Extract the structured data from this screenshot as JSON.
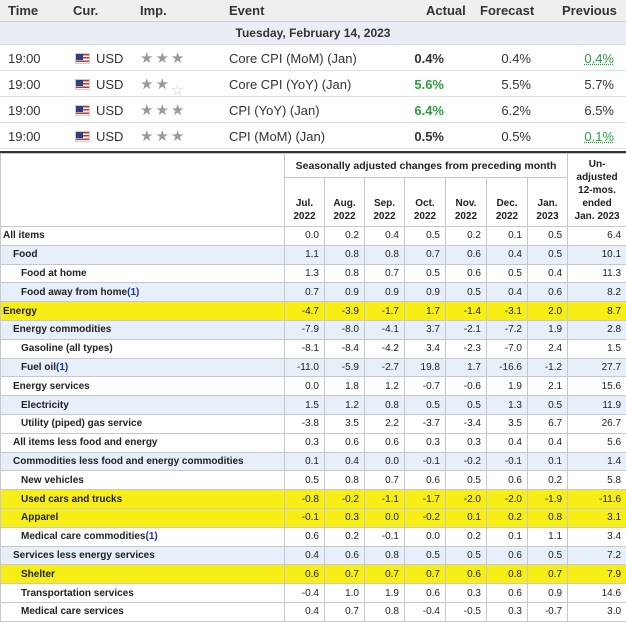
{
  "calendar": {
    "columns": {
      "time": "Time",
      "currency": "Cur.",
      "importance": "Imp.",
      "event": "Event",
      "actual": "Actual",
      "forecast": "Forecast",
      "previous": "Previous"
    },
    "date": "Tuesday, February 14, 2023",
    "events": [
      {
        "time": "19:00",
        "currency": "USD",
        "importance": 3,
        "event": "Core CPI (MoM) (Jan)",
        "actual": "0.4%",
        "forecast": "0.4%",
        "previous": "0.4%"
      },
      {
        "time": "19:00",
        "currency": "USD",
        "importance": 2,
        "event": "Core CPI (YoY) (Jan)",
        "actual": "5.6%",
        "forecast": "5.5%",
        "previous": "5.7%"
      },
      {
        "time": "19:00",
        "currency": "USD",
        "importance": 3,
        "event": "CPI (YoY) (Jan)",
        "actual": "6.4%",
        "forecast": "6.2%",
        "previous": "6.5%"
      },
      {
        "time": "19:00",
        "currency": "USD",
        "importance": 3,
        "event": "CPI (MoM) (Jan)",
        "actual": "0.5%",
        "forecast": "0.5%",
        "previous": "0.1%"
      }
    ]
  },
  "cpi_table": {
    "group_header": "Seasonally adjusted changes from preceding month",
    "months": [
      [
        "Jul.",
        "2022"
      ],
      [
        "Aug.",
        "2022"
      ],
      [
        "Sep.",
        "2022"
      ],
      [
        "Oct.",
        "2022"
      ],
      [
        "Nov.",
        "2022"
      ],
      [
        "Dec.",
        "2022"
      ],
      [
        "Jan.",
        "2023"
      ]
    ],
    "unadjusted_header": [
      "Un-",
      "adjusted",
      "12-mos.",
      "ended",
      "Jan. 2023"
    ],
    "rows": [
      {
        "label": "All items",
        "values": [
          "0.0",
          "0.2",
          "0.4",
          "0.5",
          "0.2",
          "0.1",
          "0.5"
        ],
        "yoy": "6.4"
      },
      {
        "label": "Food",
        "values": [
          "1.1",
          "0.8",
          "0.8",
          "0.7",
          "0.6",
          "0.4",
          "0.5"
        ],
        "yoy": "10.1"
      },
      {
        "label": "Food at home",
        "values": [
          "1.3",
          "0.8",
          "0.7",
          "0.5",
          "0.6",
          "0.5",
          "0.4"
        ],
        "yoy": "11.3"
      },
      {
        "label": "Food away from home",
        "note": "(1)",
        "values": [
          "0.7",
          "0.9",
          "0.9",
          "0.9",
          "0.5",
          "0.4",
          "0.6"
        ],
        "yoy": "8.2"
      },
      {
        "label": "Energy",
        "values": [
          "-4.7",
          "-3.9",
          "-1.7",
          "1.7",
          "-1.4",
          "-3.1",
          "2.0"
        ],
        "yoy": "8.7"
      },
      {
        "label": "Energy commodities",
        "values": [
          "-7.9",
          "-8.0",
          "-4.1",
          "3.7",
          "-2.1",
          "-7.2",
          "1.9"
        ],
        "yoy": "2.8"
      },
      {
        "label": "Gasoline (all types)",
        "values": [
          "-8.1",
          "-8.4",
          "-4.2",
          "3.4",
          "-2.3",
          "-7.0",
          "2.4"
        ],
        "yoy": "1.5"
      },
      {
        "label": "Fuel oil",
        "note": "(1)",
        "values": [
          "-11.0",
          "-5.9",
          "-2.7",
          "19.8",
          "1.7",
          "-16.6",
          "-1.2"
        ],
        "yoy": "27.7"
      },
      {
        "label": "Energy services",
        "values": [
          "0.0",
          "1.8",
          "1.2",
          "-0.7",
          "-0.6",
          "1.9",
          "2.1"
        ],
        "yoy": "15.6"
      },
      {
        "label": "Electricity",
        "values": [
          "1.5",
          "1.2",
          "0.8",
          "0.5",
          "0.5",
          "1.3",
          "0.5"
        ],
        "yoy": "11.9"
      },
      {
        "label": "Utility (piped) gas service",
        "values": [
          "-3.8",
          "3.5",
          "2.2",
          "-3.7",
          "-3.4",
          "3.5",
          "6.7"
        ],
        "yoy": "26.7"
      },
      {
        "label": "All items less food and energy",
        "values": [
          "0.3",
          "0.6",
          "0.6",
          "0.3",
          "0.3",
          "0.4",
          "0.4"
        ],
        "yoy": "5.6"
      },
      {
        "label": "Commodities less food and energy commodities",
        "values": [
          "0.1",
          "0.4",
          "0.0",
          "-0.1",
          "-0.2",
          "-0.1",
          "0.1"
        ],
        "yoy": "1.4"
      },
      {
        "label": "New vehicles",
        "values": [
          "0.5",
          "0.8",
          "0.7",
          "0.6",
          "0.5",
          "0.6",
          "0.2"
        ],
        "yoy": "5.8"
      },
      {
        "label": "Used cars and trucks",
        "values": [
          "-0.8",
          "-0.2",
          "-1.1",
          "-1.7",
          "-2.0",
          "-2.0",
          "-1.9"
        ],
        "yoy": "-11.6"
      },
      {
        "label": "Apparel",
        "values": [
          "-0.1",
          "0.3",
          "0.0",
          "-0.2",
          "0.1",
          "0.2",
          "0.8"
        ],
        "yoy": "3.1"
      },
      {
        "label": "Medical care commodities",
        "note": "(1)",
        "values": [
          "0.6",
          "0.2",
          "-0.1",
          "0.0",
          "0.2",
          "0.1",
          "1.1"
        ],
        "yoy": "3.4"
      },
      {
        "label": "Services less energy services",
        "values": [
          "0.4",
          "0.6",
          "0.8",
          "0.5",
          "0.5",
          "0.6",
          "0.5"
        ],
        "yoy": "7.2"
      },
      {
        "label": "Shelter",
        "values": [
          "0.6",
          "0.7",
          "0.7",
          "0.7",
          "0.6",
          "0.8",
          "0.7"
        ],
        "yoy": "7.9"
      },
      {
        "label": "Transportation services",
        "values": [
          "-0.4",
          "1.0",
          "1.9",
          "0.6",
          "0.3",
          "0.6",
          "0.9"
        ],
        "yoy": "14.6"
      },
      {
        "label": "Medical care services",
        "values": [
          "0.4",
          "0.7",
          "0.8",
          "-0.4",
          "-0.5",
          "0.3",
          "-0.7"
        ],
        "yoy": "3.0"
      }
    ]
  }
}
